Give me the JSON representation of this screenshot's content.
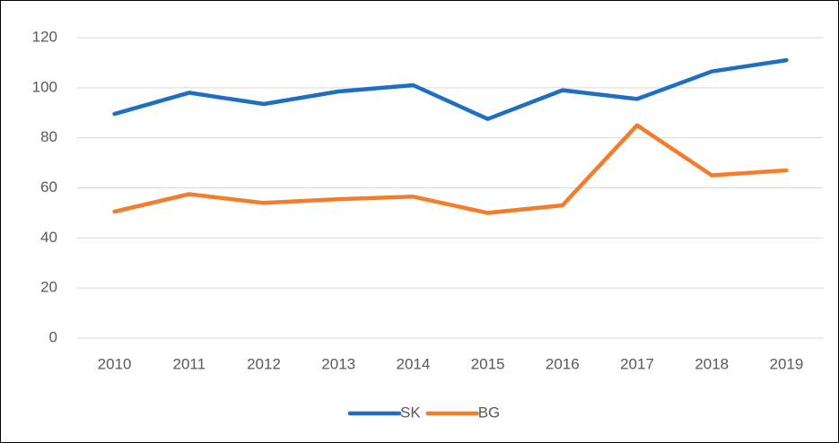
{
  "chart_data": {
    "type": "line",
    "categories": [
      "2010",
      "2011",
      "2012",
      "2013",
      "2014",
      "2015",
      "2016",
      "2017",
      "2018",
      "2019"
    ],
    "series": [
      {
        "name": "SK",
        "color": "#1f6fc1",
        "values": [
          89.5,
          98,
          93.5,
          98.5,
          101,
          87.5,
          99,
          95.5,
          106.5,
          111
        ]
      },
      {
        "name": "BG",
        "color": "#f47c2a",
        "values": [
          50.5,
          57.5,
          54,
          55.5,
          56.5,
          50,
          53,
          85,
          65,
          67
        ]
      }
    ],
    "ylim": [
      0,
      120
    ],
    "yticks": [
      0,
      20,
      40,
      60,
      80,
      100,
      120
    ],
    "grid": true,
    "legend": "bottom"
  }
}
